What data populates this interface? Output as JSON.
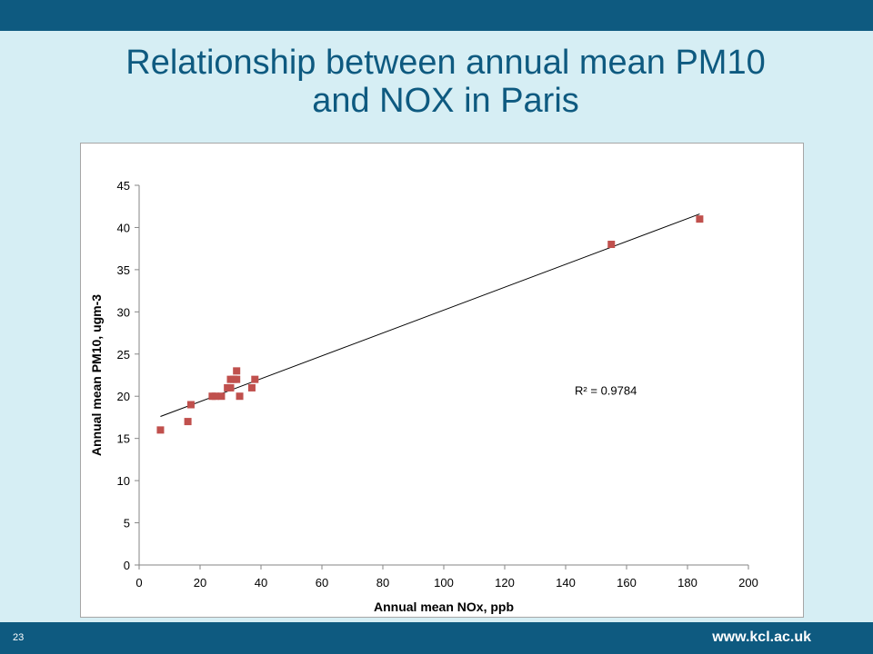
{
  "slide": {
    "title_line1": "Relationship between annual mean PM10",
    "title_line2": "and NOX in Paris",
    "slide_number": "23",
    "url": "www.kcl.ac.uk"
  },
  "colors": {
    "bar": "#0e5a80",
    "background": "#d6eef4",
    "title": "#0e5a80",
    "marker": "#c0504d",
    "trendline": "#000000"
  },
  "chart_data": {
    "type": "scatter",
    "title": "",
    "xlabel": "Annual mean NOx, ppb",
    "ylabel": "Annual mean PM10, ugm-3",
    "xlim": [
      0,
      200
    ],
    "ylim": [
      0,
      45
    ],
    "xticks": [
      0,
      20,
      40,
      60,
      80,
      100,
      120,
      140,
      160,
      180,
      200
    ],
    "yticks": [
      0,
      5,
      10,
      15,
      20,
      25,
      30,
      35,
      40,
      45
    ],
    "grid": false,
    "legend": "none",
    "series": [
      {
        "points": [
          [
            7,
            16
          ],
          [
            16,
            17
          ],
          [
            17,
            19
          ],
          [
            24,
            20
          ],
          [
            25,
            20
          ],
          [
            27,
            20
          ],
          [
            29,
            21
          ],
          [
            30,
            21
          ],
          [
            30,
            22
          ],
          [
            31,
            22
          ],
          [
            32,
            23
          ],
          [
            32,
            22
          ],
          [
            33,
            20
          ],
          [
            37,
            21
          ],
          [
            38,
            22
          ],
          [
            155,
            38
          ],
          [
            184,
            41
          ]
        ]
      }
    ],
    "trendline": {
      "x": [
        7,
        184
      ],
      "y": [
        17.6,
        41.6
      ]
    },
    "annotation": "R² = 0.9784",
    "annotation_position": {
      "x": 143,
      "y": 20.2
    }
  }
}
